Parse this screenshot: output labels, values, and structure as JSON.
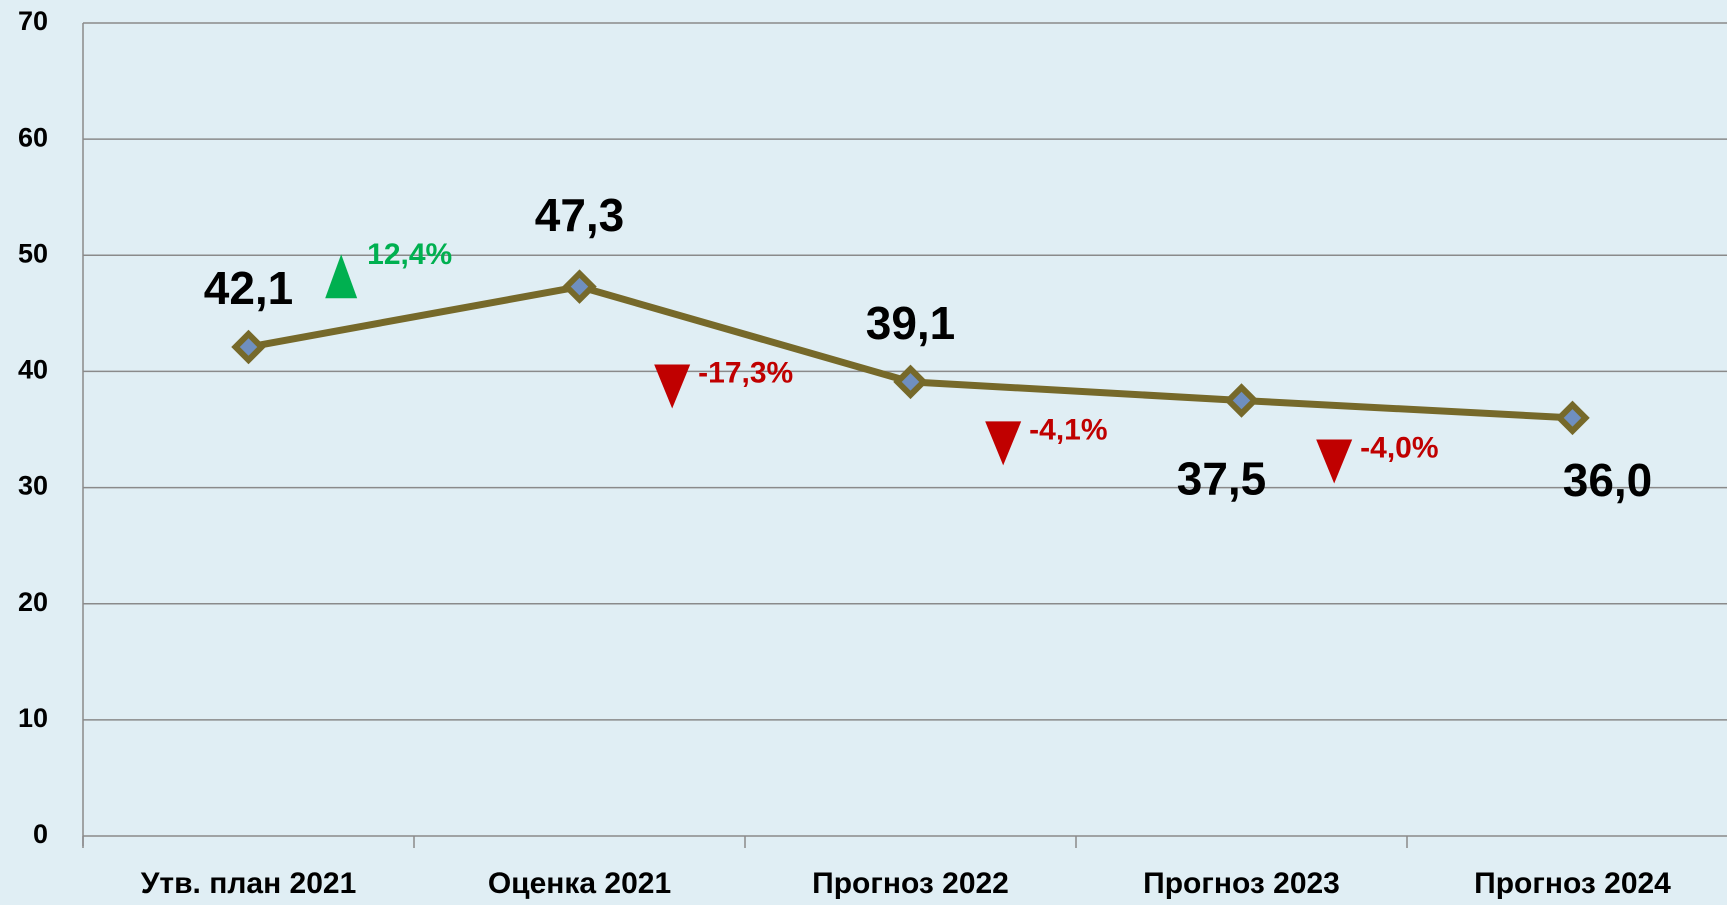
{
  "chart_data": {
    "type": "line",
    "categories": [
      "Утв. план 2021",
      "Оценка 2021",
      "Прогноз 2022",
      "Прогноз 2023",
      "Прогноз 2024"
    ],
    "series": [
      {
        "color": "#76692a",
        "values": [
          42.1,
          47.3,
          39.1,
          37.5,
          36.0
        ],
        "value_labels": [
          "42,1",
          "47,3",
          "39,1",
          "37,5",
          "36,0"
        ]
      }
    ],
    "changes": {
      "values": [
        12.4,
        -17.3,
        -4.1,
        -4.0
      ],
      "value_labels": [
        "12,4%",
        "-17,3%",
        "-4,1%",
        "-4,0%"
      ],
      "up_color": "#00b050",
      "down_color": "#c00000"
    },
    "ylim": [
      0,
      70
    ],
    "yticks": [
      0,
      10,
      20,
      30,
      40,
      50,
      60,
      70
    ],
    "grid": true
  }
}
